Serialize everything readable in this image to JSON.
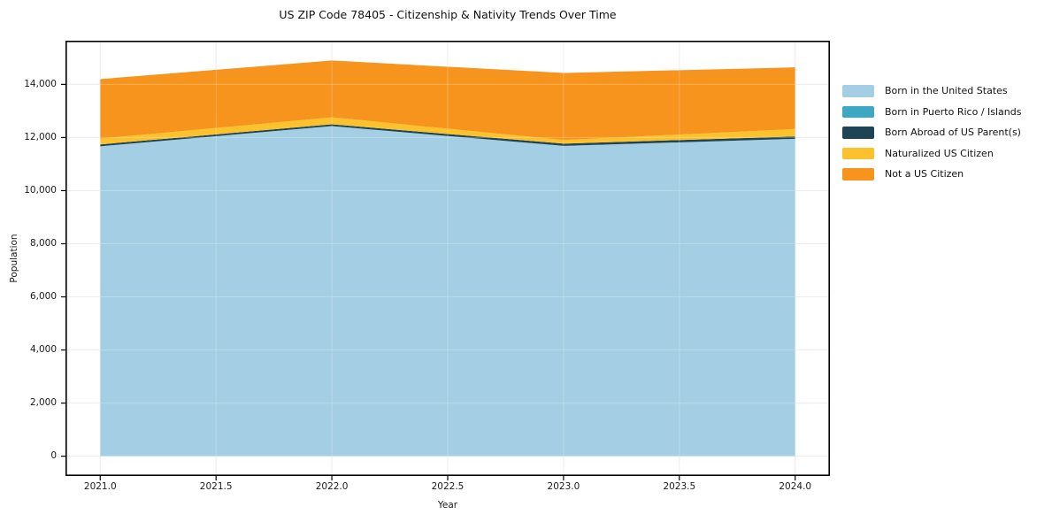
{
  "chart_data": {
    "type": "area",
    "stacked": true,
    "title": "US ZIP Code 78405 - Citizenship & Nativity Trends Over Time",
    "xlabel": "Year",
    "ylabel": "Population",
    "x": [
      2021,
      2022,
      2023,
      2024
    ],
    "series": [
      {
        "name": "Born in the United States",
        "color": "#a3cee3",
        "values": [
          11670,
          12430,
          11685,
          11950
        ]
      },
      {
        "name": "Born in Puerto Rico / Islands",
        "color": "#3da8c4",
        "values": [
          0,
          0,
          0,
          0
        ]
      },
      {
        "name": "Born Abroad of US Parent(s)",
        "color": "#1f4455",
        "values": [
          70,
          65,
          85,
          90
        ]
      },
      {
        "name": "Naturalized US Citizen",
        "color": "#fcc22d",
        "values": [
          220,
          265,
          135,
          280
        ]
      },
      {
        "name": "Not a US Citizen",
        "color": "#f7941e",
        "values": [
          2240,
          2140,
          2525,
          2320
        ]
      }
    ],
    "totals": [
      14200,
      14900,
      14430,
      14640
    ],
    "xlim": [
      2020.85,
      2024.15
    ],
    "ylim": [
      -745,
      15645
    ],
    "xticks": [
      2021.0,
      2021.5,
      2022.0,
      2022.5,
      2023.0,
      2023.5,
      2024.0
    ],
    "xtick_labels": [
      "2021.0",
      "2021.5",
      "2022.0",
      "2022.5",
      "2023.0",
      "2023.5",
      "2024.0"
    ],
    "yticks": [
      0,
      2000,
      4000,
      6000,
      8000,
      10000,
      12000,
      14000
    ],
    "ytick_labels": [
      "0",
      "2,000",
      "4,000",
      "6,000",
      "8,000",
      "10,000",
      "12,000",
      "14,000"
    ],
    "grid": true,
    "legend_position": "right-outside",
    "style": {
      "background_color": "#ffffff",
      "frame_color": "#000000",
      "grid_color": "#e7e7e7",
      "text_color": "#1a1a1a"
    }
  }
}
